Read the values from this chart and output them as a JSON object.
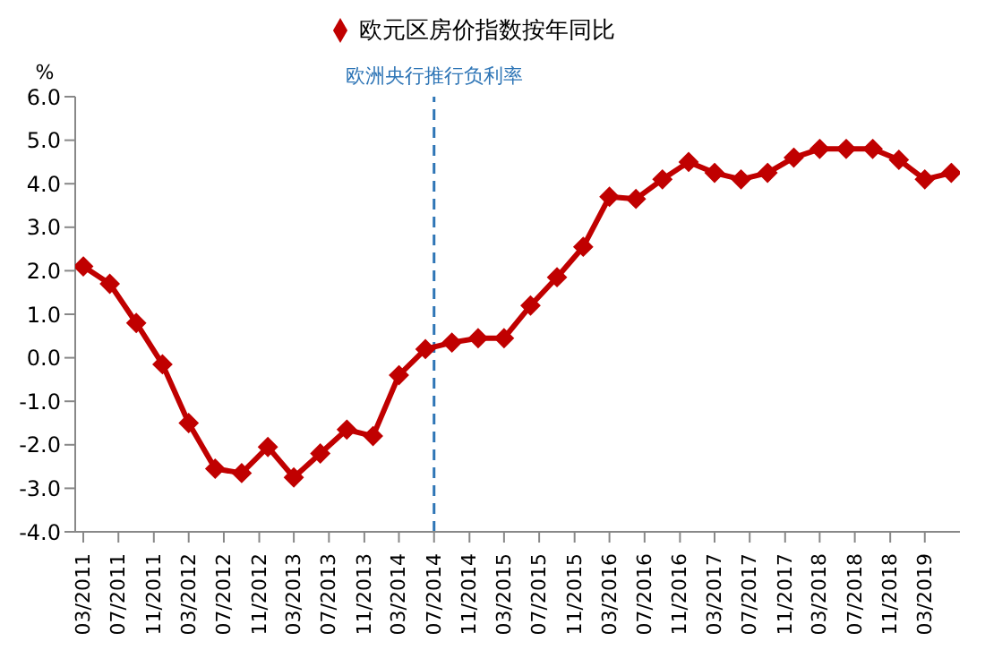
{
  "chart_data": {
    "type": "line",
    "ylabel": "%",
    "x": [
      "2011-03",
      "2011-06",
      "2011-09",
      "2011-12",
      "2012-03",
      "2012-06",
      "2012-09",
      "2012-12",
      "2013-03",
      "2013-06",
      "2013-09",
      "2013-12",
      "2014-03",
      "2014-06",
      "2014-09",
      "2014-12",
      "2015-03",
      "2015-06",
      "2015-09",
      "2015-12",
      "2016-03",
      "2016-06",
      "2016-09",
      "2016-12",
      "2017-03",
      "2017-06",
      "2017-09",
      "2017-12",
      "2018-03",
      "2018-06",
      "2018-09",
      "2018-12",
      "2019-03",
      "2019-06"
    ],
    "series": [
      {
        "name": "欧元区房价指数按年同比",
        "color": "#c00000",
        "values": [
          2.1,
          1.7,
          0.8,
          -0.15,
          -1.5,
          -2.55,
          -2.65,
          -2.05,
          -2.75,
          -2.2,
          -1.65,
          -1.8,
          -0.4,
          0.2,
          0.35,
          0.45,
          0.45,
          1.2,
          1.85,
          2.55,
          3.7,
          3.65,
          4.1,
          4.5,
          4.25,
          4.1,
          4.25,
          4.6,
          4.8,
          4.8,
          4.8,
          4.55,
          4.1,
          4.25
        ]
      }
    ],
    "xlim": [
      "2011-02",
      "2019-07"
    ],
    "xticks": [
      {
        "value": "2011-03",
        "label": "03/2011"
      },
      {
        "value": "2011-07",
        "label": "07/2011"
      },
      {
        "value": "2011-11",
        "label": "11/2011"
      },
      {
        "value": "2012-03",
        "label": "03/2012"
      },
      {
        "value": "2012-07",
        "label": "07/2012"
      },
      {
        "value": "2012-11",
        "label": "11/2012"
      },
      {
        "value": "2013-03",
        "label": "03/2013"
      },
      {
        "value": "2013-07",
        "label": "07/2013"
      },
      {
        "value": "2013-11",
        "label": "11/2013"
      },
      {
        "value": "2014-03",
        "label": "03/2014"
      },
      {
        "value": "2014-07",
        "label": "07/2014"
      },
      {
        "value": "2014-11",
        "label": "11/2014"
      },
      {
        "value": "2015-03",
        "label": "03/2015"
      },
      {
        "value": "2015-07",
        "label": "07/2015"
      },
      {
        "value": "2015-11",
        "label": "11/2015"
      },
      {
        "value": "2016-03",
        "label": "03/2016"
      },
      {
        "value": "2016-07",
        "label": "07/2016"
      },
      {
        "value": "2016-11",
        "label": "11/2016"
      },
      {
        "value": "2017-03",
        "label": "03/2017"
      },
      {
        "value": "2017-07",
        "label": "07/2017"
      },
      {
        "value": "2017-11",
        "label": "11/2017"
      },
      {
        "value": "2018-03",
        "label": "03/2018"
      },
      {
        "value": "2018-07",
        "label": "07/2018"
      },
      {
        "value": "2018-11",
        "label": "11/2018"
      },
      {
        "value": "2019-03",
        "label": "03/2019"
      }
    ],
    "ylim": [
      -4,
      6
    ],
    "yticks": [
      {
        "value": -4,
        "label": "-4.0"
      },
      {
        "value": -3,
        "label": "-3.0"
      },
      {
        "value": -2,
        "label": "-2.0"
      },
      {
        "value": -1,
        "label": "-1.0"
      },
      {
        "value": 0,
        "label": "0.0"
      },
      {
        "value": 1,
        "label": "1.0"
      },
      {
        "value": 2,
        "label": "2.0"
      },
      {
        "value": 3,
        "label": "3.0"
      },
      {
        "value": 4,
        "label": "4.0"
      },
      {
        "value": 5,
        "label": "5.0"
      },
      {
        "value": 6,
        "label": "6.0"
      }
    ],
    "ref_lines": [
      {
        "axis": "x",
        "value": "2014-07",
        "label": "欧洲央行推行负利率",
        "color": "#2e75b6",
        "line_style": "dashed"
      }
    ],
    "grid": false,
    "legend": "top",
    "marker": "diamond",
    "line_style": "solid"
  }
}
